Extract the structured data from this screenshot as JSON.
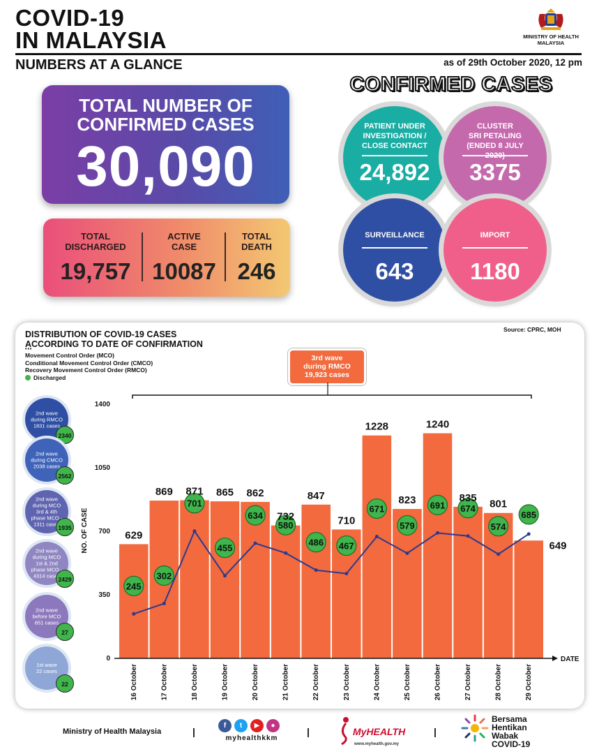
{
  "header": {
    "title_line1": "COVID-19",
    "title_line2": "IN MALAYSIA",
    "subtitle": "NUMBERS AT A GLANCE",
    "as_of": "as of 29th October 2020, 12 pm",
    "ministry_line1": "MINISTRY OF HEALTH",
    "ministry_line2": "MALAYSIA"
  },
  "total": {
    "label_line1": "TOTAL NUMBER OF",
    "label_line2": "CONFIRMED CASES",
    "value": "30,090"
  },
  "stats": {
    "discharged_label1": "TOTAL",
    "discharged_label2": "DISCHARGED",
    "discharged_value": "19,757",
    "active_label1": "ACTIVE",
    "active_label2": "CASE",
    "active_value": "10087",
    "death_label1": "TOTAL",
    "death_label2": "DEATH",
    "death_value": "246"
  },
  "confirmed": {
    "title": "CONFIRMED CASES",
    "pui_line1": "PATIENT UNDER",
    "pui_line2": "INVESTIGATION /",
    "pui_line3": "CLOSE CONTACT",
    "pui_value": "24,892",
    "cluster_line1": "CLUSTER",
    "cluster_line2": "SRI PETALING",
    "cluster_line3": "(ENDED 8 JULY 2020)",
    "cluster_value": "3375",
    "surveillance_label": "SURVEILLANCE",
    "surveillance_value": "643",
    "import_label": "IMPORT",
    "import_value": "1180",
    "colors": {
      "pui": "#1aada3",
      "cluster": "#c569ad",
      "surveillance": "#2e4fa3",
      "import": "#ef5f8a"
    }
  },
  "chart_panel": {
    "title_line1": "DISTRIBUTION OF COVID-19 CASES",
    "title_line2": "ACCORDING TO DATE OF CONFIRMATION",
    "source": "Source: CPRC, MOH",
    "legend_mco": "Movement Control Order (MCO)",
    "legend_cmco": "Conditional Movement Control Order (CMCO)",
    "legend_rmco": "Recovery Movement Control Order (RMCO)",
    "legend_discharged": "Discharged",
    "wave3_line1": "3rd wave",
    "wave3_line2": "during RMCO",
    "wave3_line3": "19,923 cases"
  },
  "side_waves": [
    {
      "line1": "2nd wave",
      "line2": "during RMCO",
      "line3": "1831 cases",
      "line4": "",
      "line5": "",
      "discharged": "2340",
      "color": "#2e4fa3"
    },
    {
      "line1": "2nd wave",
      "line2": "during CMCO",
      "line3": "2038 cases",
      "line4": "",
      "line5": "",
      "discharged": "2562",
      "color": "#3f63b8"
    },
    {
      "line1": "2nd wave",
      "line2": "during MCO",
      "line3": "3rd & 4th",
      "line4": "phase MCO -",
      "line5": "1311 cases",
      "discharged": "1935",
      "color": "#5f64b0"
    },
    {
      "line1": "2nd wave",
      "line2": "during MCO",
      "line3": "1st & 2nd",
      "line4": "phase MCO -",
      "line5": "4314 cases",
      "discharged": "2429",
      "color": "#8f86c2"
    },
    {
      "line1": "2nd wave",
      "line2": "before MCO",
      "line3": "651 cases",
      "line4": "",
      "line5": "",
      "discharged": "27",
      "color": "#8c79bd"
    },
    {
      "line1": "1st wave",
      "line2": "22 cases",
      "line3": "",
      "line4": "",
      "line5": "",
      "discharged": "22",
      "color": "#8fa7d7"
    }
  ],
  "chart_data": {
    "type": "bar",
    "categories": [
      "16 October",
      "17 October",
      "18 October",
      "19 October",
      "20 October",
      "21 October",
      "22 October",
      "23 October",
      "24 October",
      "25 October",
      "26 October",
      "27 October",
      "28 October",
      "29 October"
    ],
    "series": [
      {
        "name": "",
        "type": "bar",
        "values": [
          629,
          869,
          871,
          865,
          862,
          732,
          847,
          710,
          1228,
          823,
          1240,
          835,
          801,
          649
        ],
        "color": "#f26a3d"
      },
      {
        "name": "Discharged",
        "type": "line",
        "values": [
          245,
          302,
          701,
          455,
          634,
          580,
          486,
          467,
          671,
          579,
          691,
          674,
          574,
          685
        ],
        "color": "#2b3a8f"
      }
    ],
    "ylabel": "NO. OF CASE",
    "xlabel": "DATE",
    "ylim": [
      0,
      1400
    ],
    "yticks": [
      0,
      350,
      700,
      1050,
      1400
    ],
    "ytick_labels": [
      "0",
      "350",
      "700",
      "1050",
      "1400"
    ]
  },
  "footer": {
    "ministry": "Ministry of Health Malaysia",
    "handle": "myhealthkkm",
    "myhealth": "MyHEALTH",
    "myhealth_url": "www.myhealth.gov.my",
    "bersama_line1": "Bersama",
    "bersama_line2": "Hentikan",
    "bersama_line3": "Wabak",
    "bersama_line4": "COVID-19"
  }
}
